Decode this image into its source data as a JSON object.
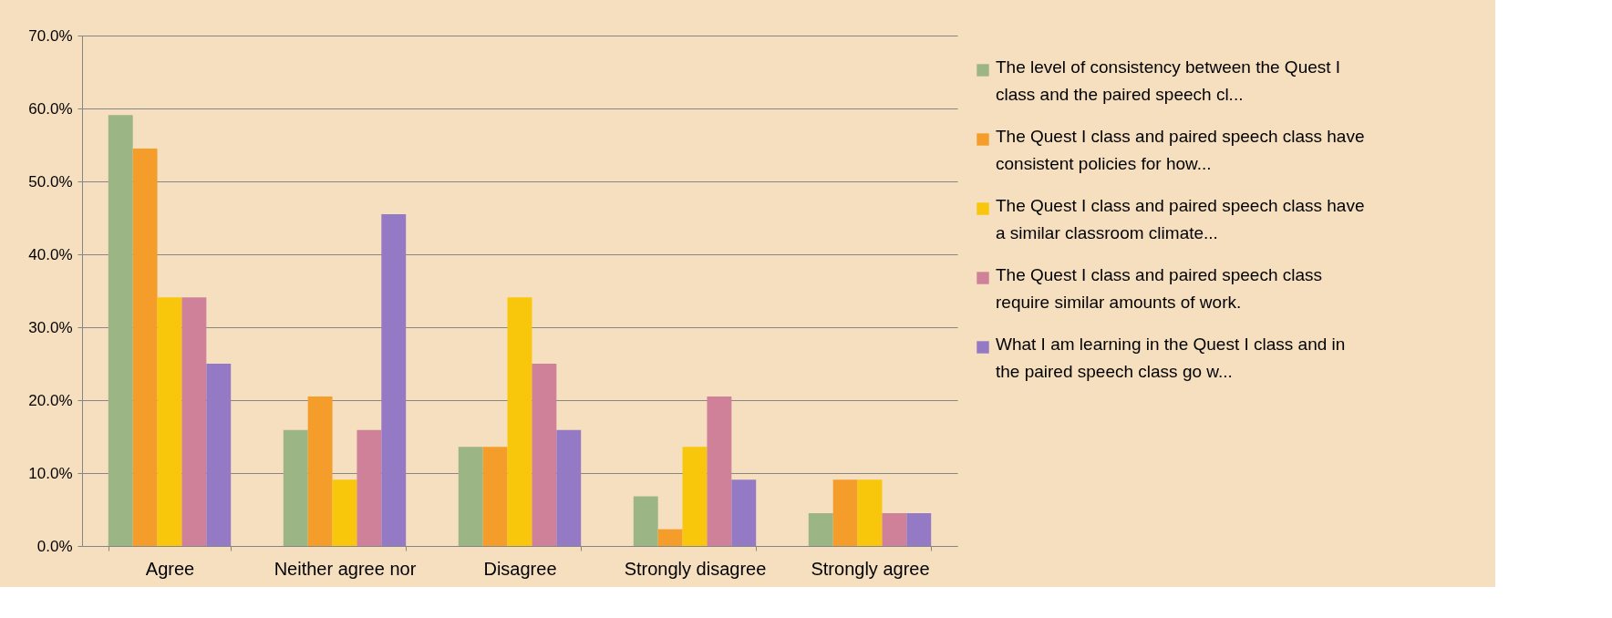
{
  "chart_data": {
    "type": "bar",
    "categories": [
      "Agree",
      "Neither agree nor",
      "Disagree",
      "Strongly disagree",
      "Strongly agree"
    ],
    "series": [
      {
        "name": "The level of consistency between the Quest I class and the paired speech cl...",
        "color": "#9bb585",
        "values": [
          59.1,
          15.9,
          13.6,
          6.8,
          4.5
        ]
      },
      {
        "name": "The Quest I class and paired speech class have consistent policies for how...",
        "color": "#f59d2a",
        "values": [
          54.5,
          20.5,
          13.6,
          2.3,
          9.1
        ]
      },
      {
        "name": "The Quest I class and paired speech class have a similar classroom climate...",
        "color": "#f8c60a",
        "values": [
          34.1,
          9.1,
          34.1,
          13.6,
          9.1
        ]
      },
      {
        "name": "The Quest I class and paired speech class require similar amounts of work.",
        "color": "#cf819a",
        "values": [
          34.1,
          15.9,
          25.0,
          20.5,
          4.5
        ]
      },
      {
        "name": "What I am learning in the Quest I class and in the paired speech class go w...",
        "color": "#9479c4",
        "values": [
          25.0,
          45.5,
          15.9,
          9.1,
          4.5
        ]
      }
    ],
    "ylim": [
      0,
      70
    ],
    "yticks": [
      {
        "value": 0,
        "label": "0.0%"
      },
      {
        "value": 10,
        "label": "10.0%"
      },
      {
        "value": 20,
        "label": "20.0%"
      },
      {
        "value": 30,
        "label": "30.0%"
      },
      {
        "value": 40,
        "label": "40.0%"
      },
      {
        "value": 50,
        "label": "50.0%"
      },
      {
        "value": 60,
        "label": "60.0%"
      },
      {
        "value": 70,
        "label": "70.0%"
      }
    ],
    "grid": "y",
    "legend": "right"
  }
}
